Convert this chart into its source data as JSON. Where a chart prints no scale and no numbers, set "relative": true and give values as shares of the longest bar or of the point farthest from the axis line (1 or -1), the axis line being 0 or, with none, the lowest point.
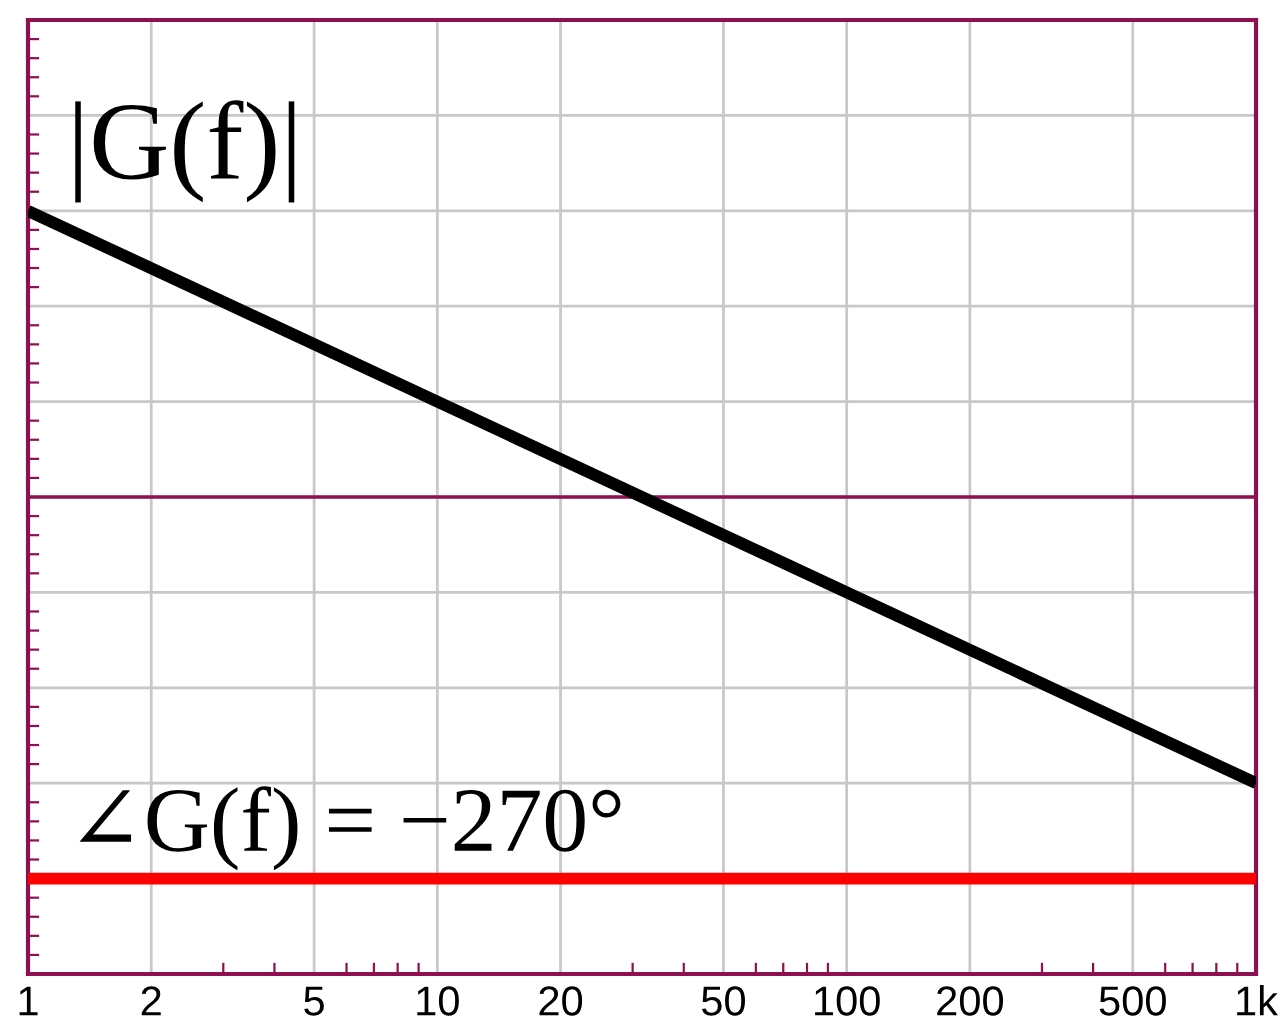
{
  "chart_data": {
    "type": "line",
    "x": [
      1,
      1000
    ],
    "relative": true,
    "series": [
      {
        "name": "|G(f)|",
        "color": "#000000",
        "values": [
          0.75,
          -0.75
        ]
      },
      {
        "name": "∠G(f) = −270°",
        "color": "#ff0000",
        "values": [
          -1,
          -1
        ]
      }
    ],
    "xlim": [
      1,
      1000
    ],
    "xticks": [
      1,
      2,
      5,
      10,
      20,
      50,
      100,
      200,
      500,
      {
        "value": 1000,
        "label": "1k"
      }
    ],
    "log": "x",
    "grid": true,
    "ref_lines": [
      {
        "axis": "y",
        "value": 0,
        "color": "#8e1050"
      }
    ],
    "tick_labels": "x",
    "marker": "none",
    "line_style": "solid"
  }
}
